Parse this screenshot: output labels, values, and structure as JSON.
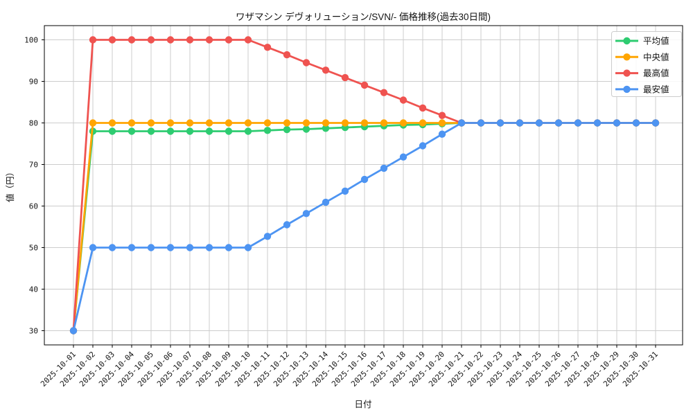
{
  "chart_data": {
    "type": "line",
    "title": "ワザマシン デヴォリューション/SVN/- 価格推移(過去30日間)",
    "xlabel": "日付",
    "ylabel": "値（円）",
    "grid": true,
    "legend_position": "upper right",
    "ylim": [
      26.5,
      103.5
    ],
    "yticks": [
      30,
      40,
      50,
      60,
      70,
      80,
      90,
      100
    ],
    "x": [
      "2025-10-01",
      "2025-10-02",
      "2025-10-03",
      "2025-10-04",
      "2025-10-05",
      "2025-10-06",
      "2025-10-07",
      "2025-10-08",
      "2025-10-09",
      "2025-10-10",
      "2025-10-11",
      "2025-10-12",
      "2025-10-13",
      "2025-10-14",
      "2025-10-15",
      "2025-10-16",
      "2025-10-17",
      "2025-10-18",
      "2025-10-19",
      "2025-10-20",
      "2025-10-21",
      "2025-10-22",
      "2025-10-23",
      "2025-10-24",
      "2025-10-25",
      "2025-10-26",
      "2025-10-27",
      "2025-10-28",
      "2025-10-29",
      "2025-10-30",
      "2025-10-31"
    ],
    "series": [
      {
        "key": "average",
        "name": "平均値",
        "color": "#2ECC71",
        "values": [
          30,
          78,
          78,
          78,
          78,
          78,
          78,
          78,
          78,
          78,
          78.2,
          78.4,
          78.5,
          78.7,
          78.9,
          79.1,
          79.3,
          79.5,
          79.6,
          79.8,
          80,
          80,
          80,
          80,
          80,
          80,
          80,
          80,
          80,
          80,
          80
        ]
      },
      {
        "key": "median",
        "name": "中央値",
        "color": "#FFA502",
        "values": [
          30,
          80,
          80,
          80,
          80,
          80,
          80,
          80,
          80,
          80,
          80,
          80,
          80,
          80,
          80,
          80,
          80,
          80,
          80,
          80,
          80,
          80,
          80,
          80,
          80,
          80,
          80,
          80,
          80,
          80,
          80
        ]
      },
      {
        "key": "highest",
        "name": "最高値",
        "color": "#EF5350",
        "values": [
          30,
          100,
          100,
          100,
          100,
          100,
          100,
          100,
          100,
          100,
          98.2,
          96.4,
          94.5,
          92.7,
          90.9,
          89.1,
          87.3,
          85.5,
          83.6,
          81.8,
          80,
          80,
          80,
          80,
          80,
          80,
          80,
          80,
          80,
          80,
          80
        ]
      },
      {
        "key": "lowest",
        "name": "最安値",
        "color": "#4D94F2",
        "values": [
          30,
          50,
          50,
          50,
          50,
          50,
          50,
          50,
          50,
          50,
          52.7,
          55.5,
          58.2,
          60.9,
          63.6,
          66.4,
          69.1,
          71.8,
          74.5,
          77.3,
          80,
          80,
          80,
          80,
          80,
          80,
          80,
          80,
          80,
          80,
          80
        ]
      }
    ]
  }
}
